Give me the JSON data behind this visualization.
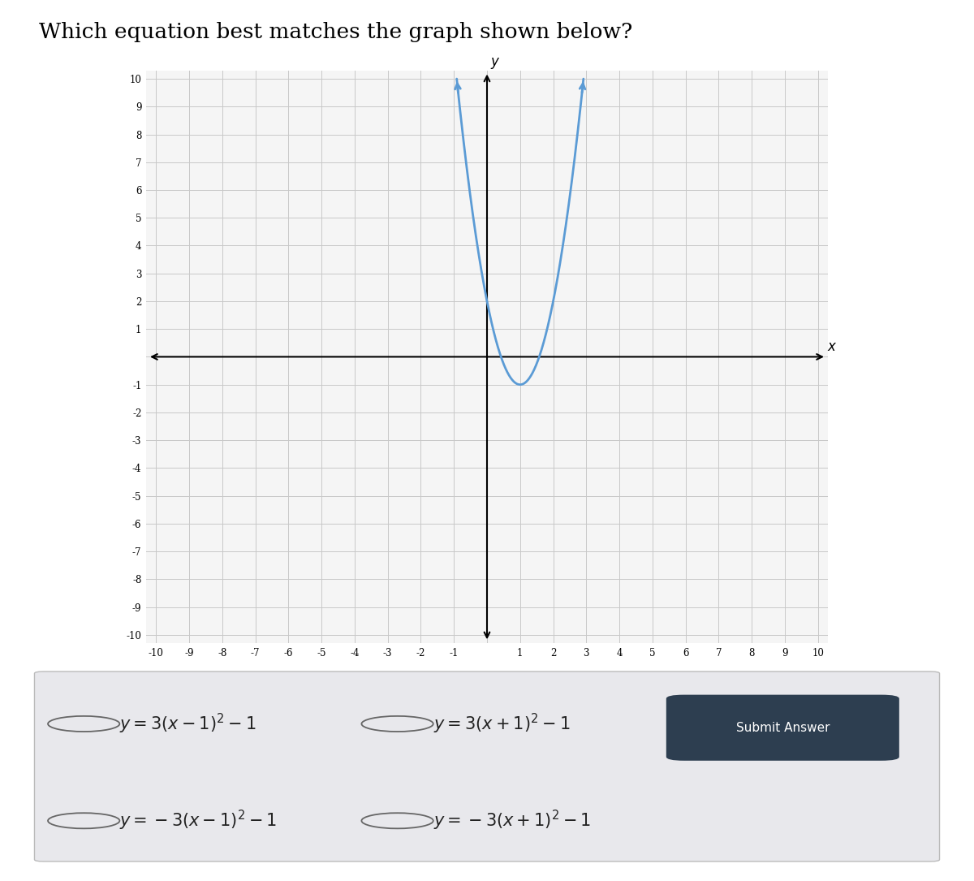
{
  "title": "Which equation best matches the graph shown below?",
  "title_fontsize": 19,
  "curve_color": "#5b9bd5",
  "curve_linewidth": 2.0,
  "x_range": [
    -10,
    10
  ],
  "y_range": [
    -10,
    10
  ],
  "grid_color": "#c8c8c8",
  "axis_color": "#000000",
  "background_color": "#ffffff",
  "plot_bg_color": "#f5f5f5",
  "options_latex": [
    "$y = 3(x - 1)^2 - 1$",
    "$y = 3(x + 1)^2 - 1$",
    "$y = -3(x - 1)^2 - 1$",
    "$y = -3(x + 1)^2 - 1$"
  ],
  "submit_button_color": "#2d3e50",
  "submit_button_text": "Submit Answer",
  "options_panel_color": "#e8e8ec"
}
